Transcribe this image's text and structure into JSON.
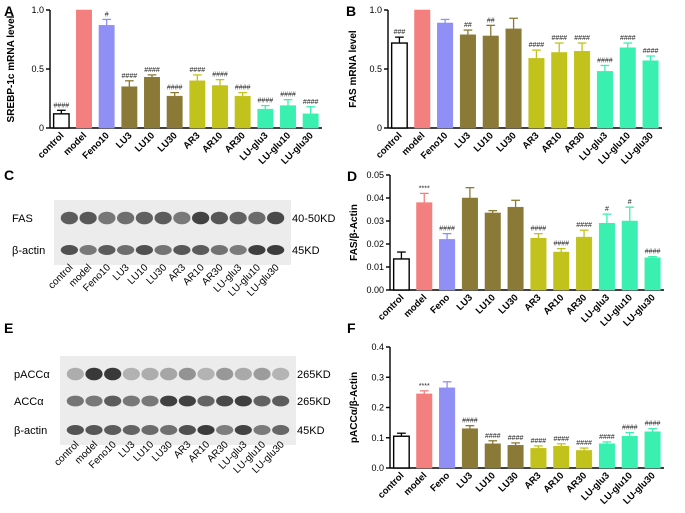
{
  "chart_data": [
    {
      "panel": "A",
      "type": "bar",
      "ylabel": "SREBP-1c mRNA level",
      "ylim": [
        0,
        1.0
      ],
      "yticks": [
        0,
        0.5,
        1.0
      ],
      "tick_labels": [
        "0",
        "0.5",
        "1.0"
      ],
      "categories": [
        "control",
        "model",
        "Feno10",
        "LU3",
        "LU10",
        "LU30",
        "AR3",
        "AR10",
        "AR30",
        "LU-glu3",
        "LU-glu10",
        "LU-glu30"
      ],
      "values": [
        0.12,
        1.0,
        0.87,
        0.35,
        0.43,
        0.27,
        0.4,
        0.36,
        0.27,
        0.16,
        0.19,
        0.12
      ],
      "errors": [
        0.03,
        0,
        0.05,
        0.05,
        0.02,
        0.03,
        0.05,
        0.05,
        0.03,
        0.03,
        0.05,
        0.06
      ],
      "annotations": [
        "####",
        "",
        "#",
        "####",
        "####",
        "####",
        "####",
        "####",
        "####",
        "####",
        "####",
        "####"
      ]
    },
    {
      "panel": "B",
      "type": "bar",
      "ylabel": "FAS mRNA level",
      "ylim": [
        0,
        1.0
      ],
      "yticks": [
        0,
        0.5,
        1.0
      ],
      "tick_labels": [
        "0",
        "0.5",
        "1.0"
      ],
      "categories": [
        "control",
        "model",
        "Feno10",
        "LU3",
        "LU10",
        "LU30",
        "AR3",
        "AR10",
        "AR30",
        "LU-glu3",
        "LU-glu10",
        "LU-glu30"
      ],
      "values": [
        0.72,
        1.0,
        0.89,
        0.79,
        0.78,
        0.84,
        0.59,
        0.64,
        0.65,
        0.48,
        0.68,
        0.57
      ],
      "errors": [
        0.05,
        0,
        0.03,
        0.04,
        0.09,
        0.09,
        0.07,
        0.08,
        0.07,
        0.05,
        0.04,
        0.04
      ],
      "annotations": [
        "###",
        "",
        "",
        "##",
        "##",
        "",
        "####",
        "####",
        "####",
        "####",
        "####",
        "####"
      ]
    },
    {
      "panel": "D",
      "type": "bar",
      "ylabel": "FAS/β-Actin",
      "ylim": [
        0,
        0.05
      ],
      "yticks": [
        0,
        0.01,
        0.02,
        0.03,
        0.04,
        0.05
      ],
      "tick_labels": [
        "0.00",
        "0.01",
        "0.02",
        "0.03",
        "0.04",
        "0.05"
      ],
      "categories": [
        "control",
        "model",
        "Feno",
        "LU3",
        "LU10",
        "LU30",
        "AR3",
        "AR10",
        "AR30",
        "LU-glu3",
        "LU-glu10",
        "LU-glu30"
      ],
      "values": [
        0.0135,
        0.038,
        0.022,
        0.04,
        0.0335,
        0.036,
        0.0225,
        0.0165,
        0.023,
        0.029,
        0.03,
        0.014
      ],
      "errors": [
        0.003,
        0.004,
        0.0025,
        0.0045,
        0.001,
        0.003,
        0.002,
        0.0015,
        0.003,
        0.004,
        0.006,
        0.0005
      ],
      "annotations": [
        "",
        "****",
        "####",
        "",
        "",
        "",
        "####",
        "####",
        "####",
        "#",
        "#",
        "####"
      ]
    },
    {
      "panel": "F",
      "type": "bar",
      "ylabel": "pACCα/β-Actin",
      "ylim": [
        0,
        0.4
      ],
      "yticks": [
        0,
        0.1,
        0.2,
        0.3,
        0.4
      ],
      "tick_labels": [
        "0.0",
        "0.1",
        "0.2",
        "0.3",
        "0.4"
      ],
      "categories": [
        "control",
        "model",
        "Feno",
        "LU3",
        "LU10",
        "LU30",
        "AR3",
        "AR10",
        "AR30",
        "LU-glu3",
        "LU-glu10",
        "LU-glu30"
      ],
      "values": [
        0.105,
        0.245,
        0.265,
        0.13,
        0.08,
        0.075,
        0.065,
        0.072,
        0.058,
        0.08,
        0.105,
        0.12
      ],
      "errors": [
        0.01,
        0.01,
        0.02,
        0.01,
        0.01,
        0.008,
        0.008,
        0.008,
        0.008,
        0.006,
        0.012,
        0.01
      ],
      "annotations": [
        "",
        "****",
        "",
        "####",
        "####",
        "####",
        "####",
        "####",
        "####",
        "####",
        "####",
        "####"
      ]
    }
  ],
  "colors": [
    "#ffffff",
    "#f47f7f",
    "#8f8ff5",
    "#8b7a37",
    "#8b7a37",
    "#8b7a37",
    "#c2c21c",
    "#c2c21c",
    "#c2c21c",
    "#3af0b0",
    "#3af0b0",
    "#3af0b0"
  ],
  "blots": {
    "C": {
      "panel": "C",
      "rows": [
        {
          "label": "FAS",
          "size": "40-50KD"
        },
        {
          "label": "β-actin",
          "size": "45KD"
        }
      ],
      "lanes": [
        "control",
        "model",
        "Feno10",
        "LU3",
        "LU10",
        "LU30",
        "AR3",
        "AR10",
        "AR30",
        "LU-glu3",
        "LU-glu10",
        "LU-glu30"
      ]
    },
    "E": {
      "panel": "E",
      "rows": [
        {
          "label": "pACCα",
          "size": "265KD"
        },
        {
          "label": "ACCα",
          "size": "265KD"
        },
        {
          "label": "β-actin",
          "size": "45KD"
        }
      ],
      "lanes": [
        "control",
        "model",
        "Feno10",
        "LU3",
        "LU10",
        "LU30",
        "AR3",
        "AR10",
        "AR30",
        "LU-glu3",
        "LU-glu10",
        "LU-glu30"
      ]
    }
  }
}
